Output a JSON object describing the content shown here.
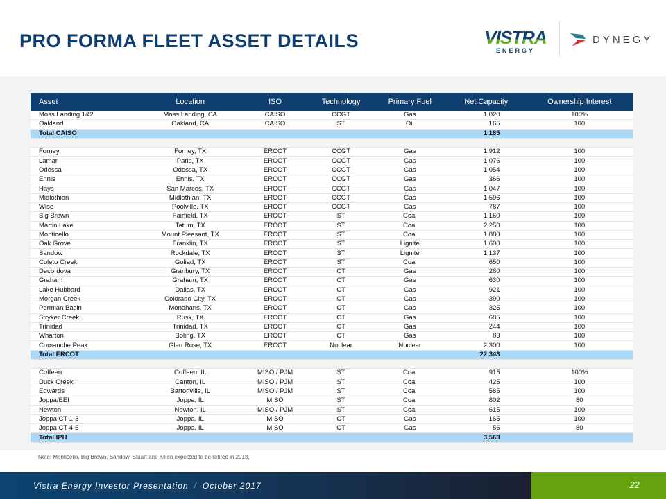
{
  "title": "PRO FORMA FLEET ASSET DETAILS",
  "logos": {
    "vistra_main": "VISTRA",
    "vistra_sub": "ENERGY",
    "dynegy": "DYNEGY"
  },
  "colors": {
    "header": "#0e3f6e",
    "total_row": "#acd8f8",
    "footer_green": "#64a30e"
  },
  "table": {
    "columns": [
      "Asset",
      "Location",
      "ISO",
      "Technology",
      "Primary Fuel",
      "Net Capacity",
      "Ownership Interest"
    ],
    "rows": [
      {
        "type": "data",
        "cells": [
          "Moss Landing 1&2",
          "Moss Landing, CA",
          "CAISO",
          "CCGT",
          "Gas",
          "1,020",
          "100%"
        ]
      },
      {
        "type": "data",
        "cells": [
          "Oakland",
          "Oakland, CA",
          "CAISO",
          "ST",
          "Oil",
          "165",
          "100"
        ]
      },
      {
        "type": "total",
        "cells": [
          "Total CAISO",
          "",
          "",
          "",
          "",
          "1,185",
          ""
        ]
      },
      {
        "type": "blank",
        "cells": [
          "",
          "",
          "",
          "",
          "",
          "",
          ""
        ]
      },
      {
        "type": "data",
        "cells": [
          "Forney",
          "Forney, TX",
          "ERCOT",
          "CCGT",
          "Gas",
          "1,912",
          "100"
        ]
      },
      {
        "type": "data",
        "cells": [
          "Lamar",
          "Paris, TX",
          "ERCOT",
          "CCGT",
          "Gas",
          "1,076",
          "100"
        ]
      },
      {
        "type": "data",
        "cells": [
          "Odessa",
          "Odessa, TX",
          "ERCOT",
          "CCGT",
          "Gas",
          "1,054",
          "100"
        ]
      },
      {
        "type": "data",
        "cells": [
          "Ennis",
          "Ennis, TX",
          "ERCOT",
          "CCGT",
          "Gas",
          "366",
          "100"
        ]
      },
      {
        "type": "data",
        "cells": [
          "Hays",
          "San Marcos, TX",
          "ERCOT",
          "CCGT",
          "Gas",
          "1,047",
          "100"
        ]
      },
      {
        "type": "data",
        "cells": [
          "Midlothian",
          "Midlothian, TX",
          "ERCOT",
          "CCGT",
          "Gas",
          "1,596",
          "100"
        ]
      },
      {
        "type": "data",
        "cells": [
          "Wise",
          "Poolville, TX",
          "ERCOT",
          "CCGT",
          "Gas",
          "787",
          "100"
        ]
      },
      {
        "type": "data",
        "cells": [
          "Big Brown",
          "Fairfield, TX",
          "ERCOT",
          "ST",
          "Coal",
          "1,150",
          "100"
        ]
      },
      {
        "type": "data",
        "cells": [
          "Martin Lake",
          "Tatum, TX",
          "ERCOT",
          "ST",
          "Coal",
          "2,250",
          "100"
        ]
      },
      {
        "type": "data",
        "cells": [
          "Monticello",
          "Mount Pleasant, TX",
          "ERCOT",
          "ST",
          "Coal",
          "1,880",
          "100"
        ]
      },
      {
        "type": "data",
        "cells": [
          "Oak Grove",
          "Franklin, TX",
          "ERCOT",
          "ST",
          "Lignite",
          "1,600",
          "100"
        ]
      },
      {
        "type": "data",
        "cells": [
          "Sandow",
          "Rockdale, TX",
          "ERCOT",
          "ST",
          "Lignite",
          "1,137",
          "100"
        ]
      },
      {
        "type": "data",
        "cells": [
          "Coleto Creek",
          "Goliad, TX",
          "ERCOT",
          "ST",
          "Coal",
          "650",
          "100"
        ]
      },
      {
        "type": "data",
        "cells": [
          "Decordova",
          "Granbury, TX",
          "ERCOT",
          "CT",
          "Gas",
          "260",
          "100"
        ]
      },
      {
        "type": "data",
        "cells": [
          "Graham",
          "Graham, TX",
          "ERCOT",
          "CT",
          "Gas",
          "630",
          "100"
        ]
      },
      {
        "type": "data",
        "cells": [
          "Lake Hubbard",
          "Dallas, TX",
          "ERCOT",
          "CT",
          "Gas",
          "921",
          "100"
        ]
      },
      {
        "type": "data",
        "cells": [
          "Morgan Creek",
          "Colorado City, TX",
          "ERCOT",
          "CT",
          "Gas",
          "390",
          "100"
        ]
      },
      {
        "type": "data",
        "cells": [
          "Permian Basin",
          "Monahans, TX",
          "ERCOT",
          "CT",
          "Gas",
          "325",
          "100"
        ]
      },
      {
        "type": "data",
        "cells": [
          "Stryker Creek",
          "Rusk, TX",
          "ERCOT",
          "CT",
          "Gas",
          "685",
          "100"
        ]
      },
      {
        "type": "data",
        "cells": [
          "Trinidad",
          "Trinidad, TX",
          "ERCOT",
          "CT",
          "Gas",
          "244",
          "100"
        ]
      },
      {
        "type": "data",
        "cells": [
          "Wharton",
          "Boling, TX",
          "ERCOT",
          "CT",
          "Gas",
          "83",
          "100"
        ]
      },
      {
        "type": "data",
        "cells": [
          "Comanche Peak",
          "Glen Rose, TX",
          "ERCOT",
          "Nuclear",
          "Nuclear",
          "2,300",
          "100"
        ]
      },
      {
        "type": "total",
        "cells": [
          "Total ERCOT",
          "",
          "",
          "",
          "",
          "22,343",
          ""
        ]
      },
      {
        "type": "blank",
        "cells": [
          "",
          "",
          "",
          "",
          "",
          "",
          ""
        ]
      },
      {
        "type": "data",
        "cells": [
          "Coffeen",
          "Coffeen, IL",
          "MISO / PJM",
          "ST",
          "Coal",
          "915",
          "100%"
        ]
      },
      {
        "type": "data",
        "cells": [
          "Duck Creek",
          "Canton, IL",
          "MISO / PJM",
          "ST",
          "Coal",
          "425",
          "100"
        ]
      },
      {
        "type": "data",
        "cells": [
          "Edwards",
          "Bartonville, IL",
          "MISO / PJM",
          "ST",
          "Coal",
          "585",
          "100"
        ]
      },
      {
        "type": "data",
        "cells": [
          "Joppa/EEI",
          "Joppa, IL",
          "MISO",
          "ST",
          "Coal",
          "802",
          "80"
        ]
      },
      {
        "type": "data",
        "cells": [
          "Newton",
          "Newton, IL",
          "MISO / PJM",
          "ST",
          "Coal",
          "615",
          "100"
        ]
      },
      {
        "type": "data",
        "cells": [
          "Joppa CT 1-3",
          "Joppa, IL",
          "MISO",
          "CT",
          "Gas",
          "165",
          "100"
        ]
      },
      {
        "type": "data",
        "cells": [
          "Joppa CT 4-5",
          "Joppa, IL",
          "MISO",
          "CT",
          "Gas",
          "56",
          "80"
        ]
      },
      {
        "type": "total",
        "cells": [
          "Total IPH",
          "",
          "",
          "",
          "",
          "3,563",
          ""
        ]
      }
    ]
  },
  "note": "Note: Monticello, Big Brown, Sandow, Stuart and Killen expected to be retired in 2018.",
  "footer": {
    "presentation": "Vistra Energy Investor Presentation",
    "separator": "/",
    "date": "October 2017",
    "page": "22"
  }
}
